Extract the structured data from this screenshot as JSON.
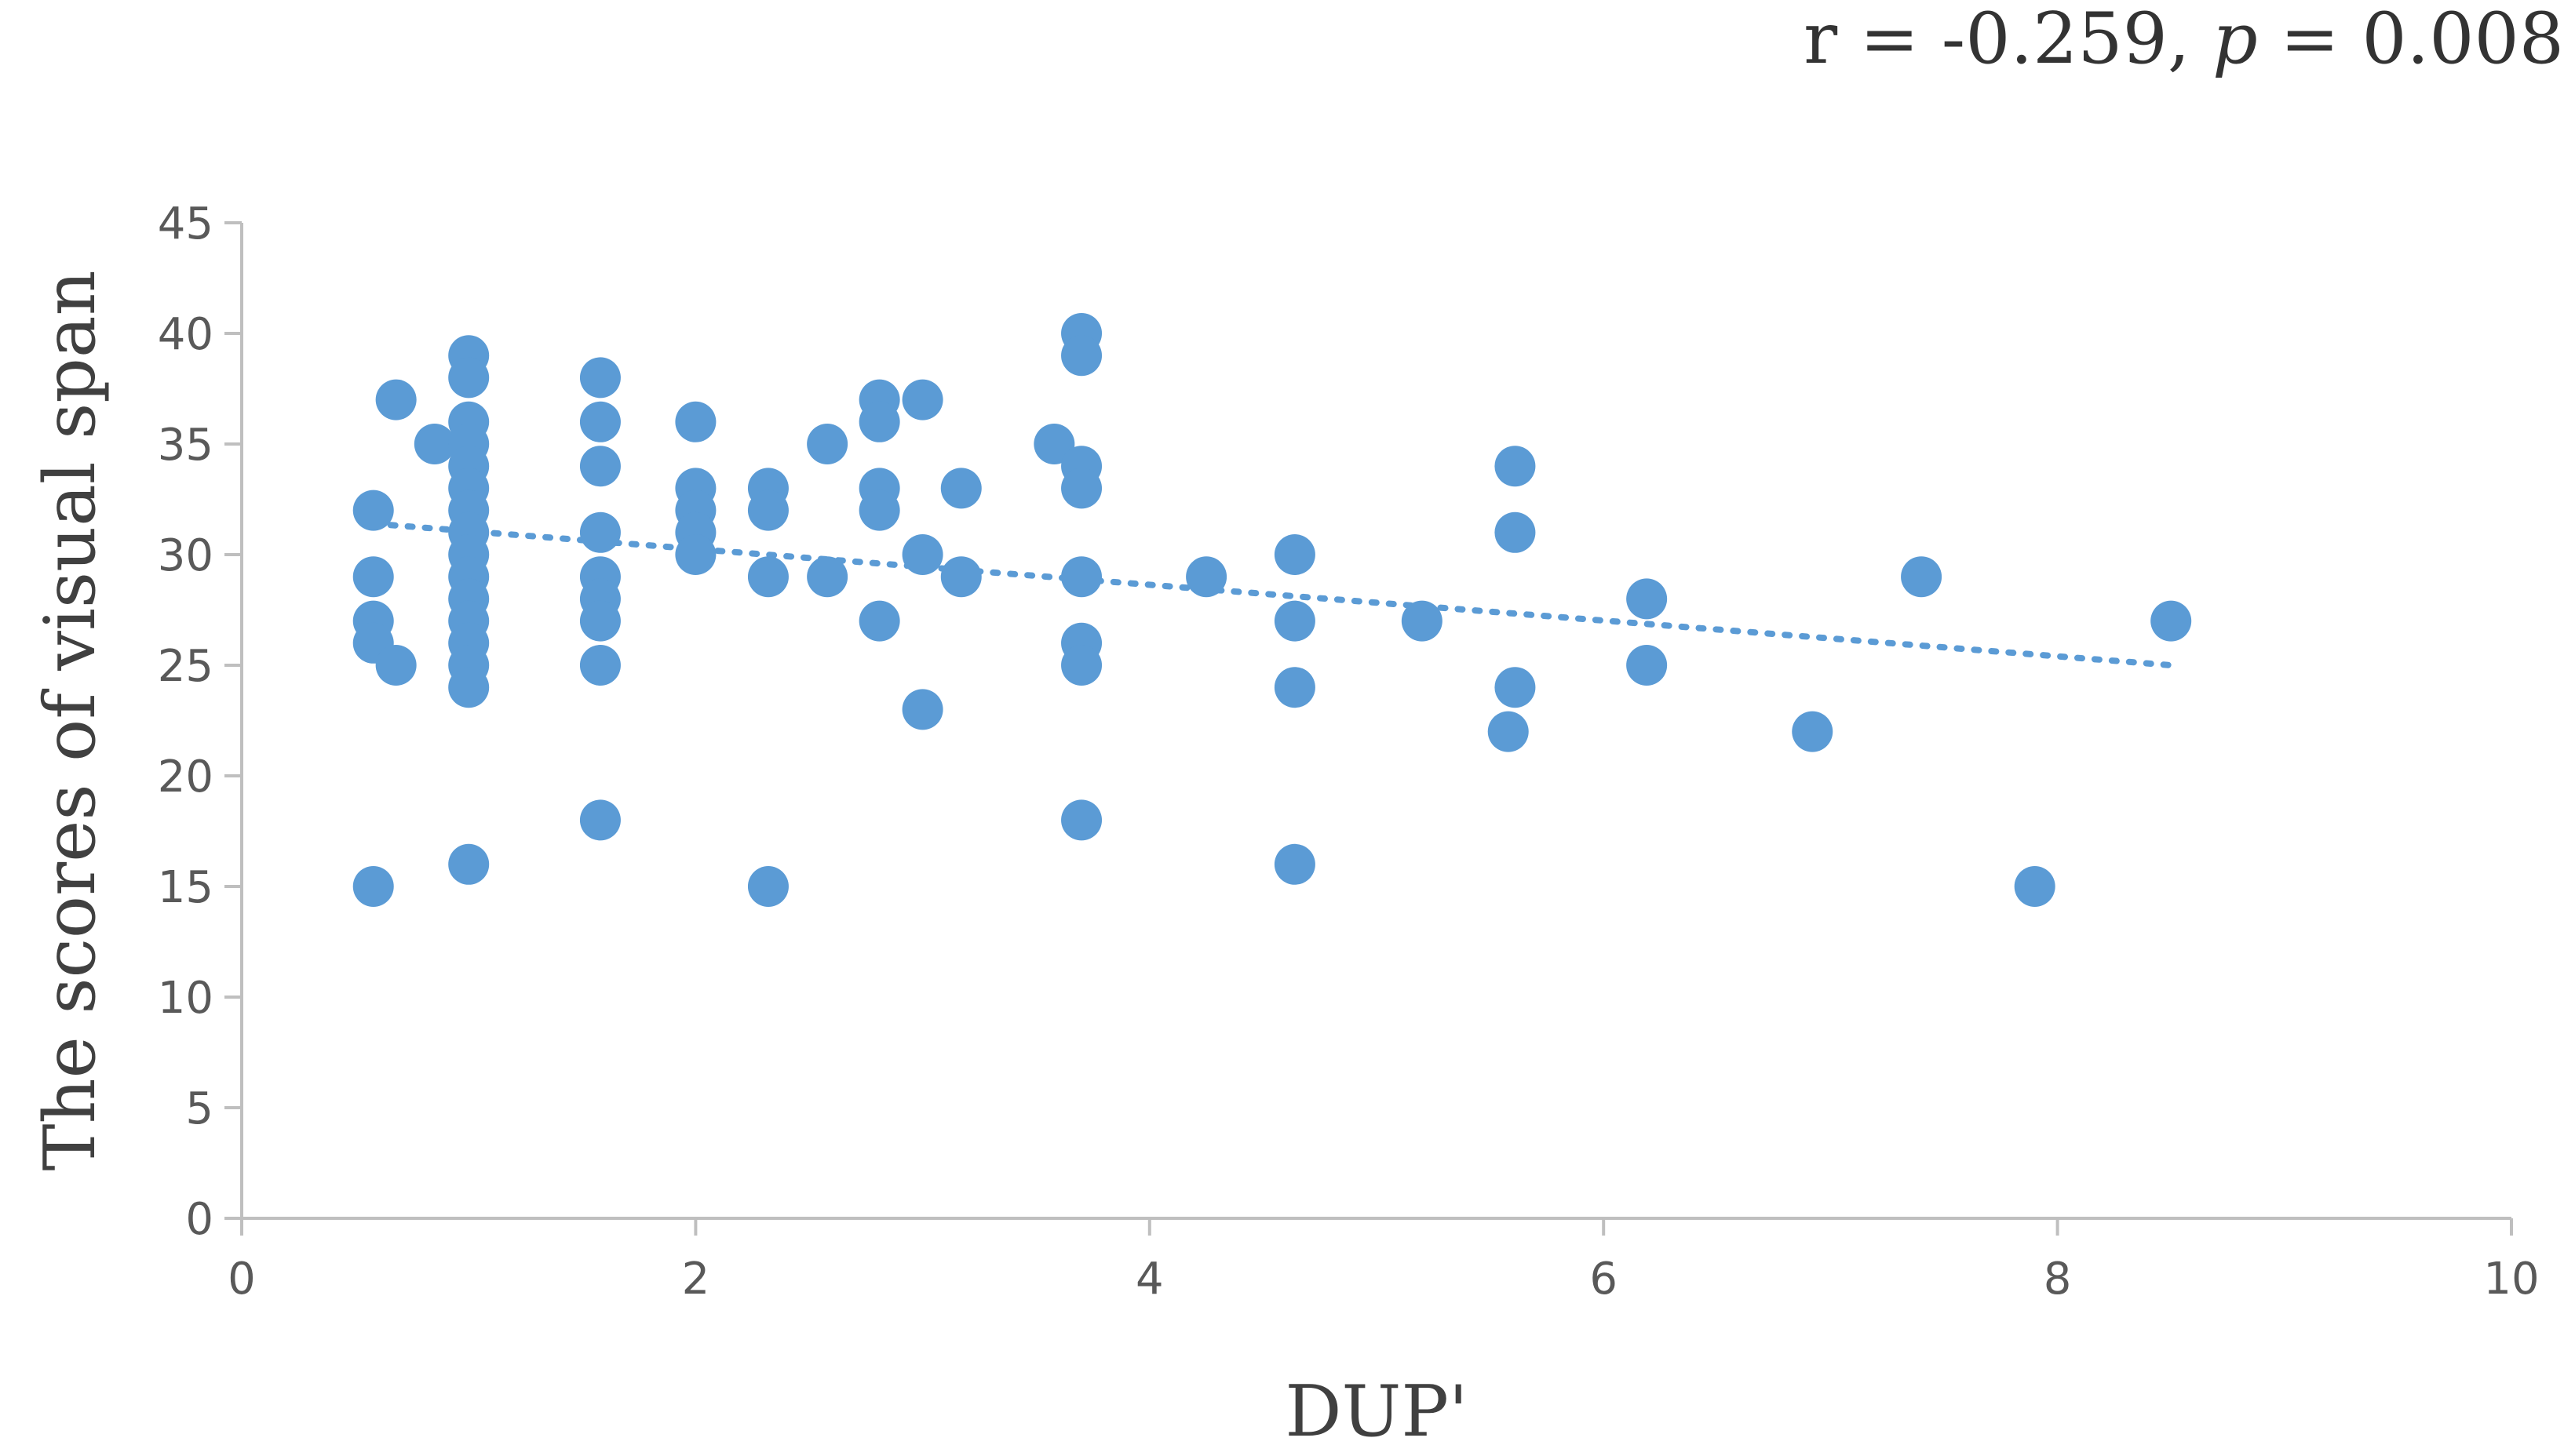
{
  "annotation": {
    "r_text": "r = -0.259, ",
    "p_symbol": "p",
    "p_value_text": " = 0.008"
  },
  "chart_data": {
    "type": "scatter",
    "xlabel": "DUP'",
    "ylabel": "The scores of visual span",
    "xlim": [
      0,
      10
    ],
    "ylim": [
      0,
      45
    ],
    "x_ticks": [
      "0",
      "2",
      "4",
      "6",
      "8",
      "10"
    ],
    "y_ticks": [
      "0",
      "5",
      "10",
      "15",
      "20",
      "25",
      "30",
      "35",
      "40",
      "45"
    ],
    "grid": false,
    "marker_color": "#5B9BD5",
    "trendline": {
      "style": "dotted",
      "color": "#5B9BD5",
      "from": [
        0.58,
        31.4
      ],
      "to": [
        8.5,
        25.0
      ]
    },
    "points": [
      [
        0.58,
        32
      ],
      [
        0.58,
        29
      ],
      [
        0.58,
        27
      ],
      [
        0.58,
        26
      ],
      [
        0.58,
        15
      ],
      [
        0.68,
        37
      ],
      [
        0.68,
        25
      ],
      [
        0.85,
        35
      ],
      [
        1.0,
        39
      ],
      [
        1.0,
        38
      ],
      [
        1.0,
        36
      ],
      [
        1.0,
        35
      ],
      [
        1.0,
        34
      ],
      [
        1.0,
        33
      ],
      [
        1.0,
        32
      ],
      [
        1.0,
        31
      ],
      [
        1.0,
        30
      ],
      [
        1.0,
        29
      ],
      [
        1.0,
        28
      ],
      [
        1.0,
        27
      ],
      [
        1.0,
        26
      ],
      [
        1.0,
        25
      ],
      [
        1.0,
        24
      ],
      [
        1.0,
        16
      ],
      [
        1.58,
        38
      ],
      [
        1.58,
        36
      ],
      [
        1.58,
        34
      ],
      [
        1.58,
        31
      ],
      [
        1.58,
        29
      ],
      [
        1.58,
        28
      ],
      [
        1.58,
        27
      ],
      [
        1.58,
        25
      ],
      [
        1.58,
        18
      ],
      [
        2.0,
        36
      ],
      [
        2.0,
        33
      ],
      [
        2.0,
        32
      ],
      [
        2.0,
        31
      ],
      [
        2.0,
        30
      ],
      [
        2.32,
        33
      ],
      [
        2.32,
        32
      ],
      [
        2.32,
        29
      ],
      [
        2.32,
        15
      ],
      [
        2.58,
        35
      ],
      [
        2.58,
        29
      ],
      [
        2.81,
        37
      ],
      [
        2.81,
        36
      ],
      [
        2.81,
        33
      ],
      [
        2.81,
        32
      ],
      [
        2.81,
        27
      ],
      [
        3.0,
        37
      ],
      [
        3.0,
        30
      ],
      [
        3.0,
        23
      ],
      [
        3.17,
        33
      ],
      [
        3.17,
        29
      ],
      [
        3.58,
        35
      ],
      [
        3.7,
        40
      ],
      [
        3.7,
        39
      ],
      [
        3.7,
        34
      ],
      [
        3.7,
        33
      ],
      [
        3.7,
        29
      ],
      [
        3.7,
        26
      ],
      [
        3.7,
        25
      ],
      [
        3.7,
        18
      ],
      [
        4.25,
        29
      ],
      [
        4.64,
        30
      ],
      [
        4.64,
        27
      ],
      [
        4.64,
        24
      ],
      [
        4.64,
        16
      ],
      [
        5.2,
        27
      ],
      [
        5.58,
        22
      ],
      [
        5.61,
        34
      ],
      [
        5.61,
        31
      ],
      [
        5.61,
        24
      ],
      [
        6.19,
        28
      ],
      [
        6.19,
        25
      ],
      [
        6.92,
        22
      ],
      [
        7.4,
        29
      ],
      [
        7.9,
        15
      ],
      [
        8.5,
        27
      ]
    ]
  }
}
